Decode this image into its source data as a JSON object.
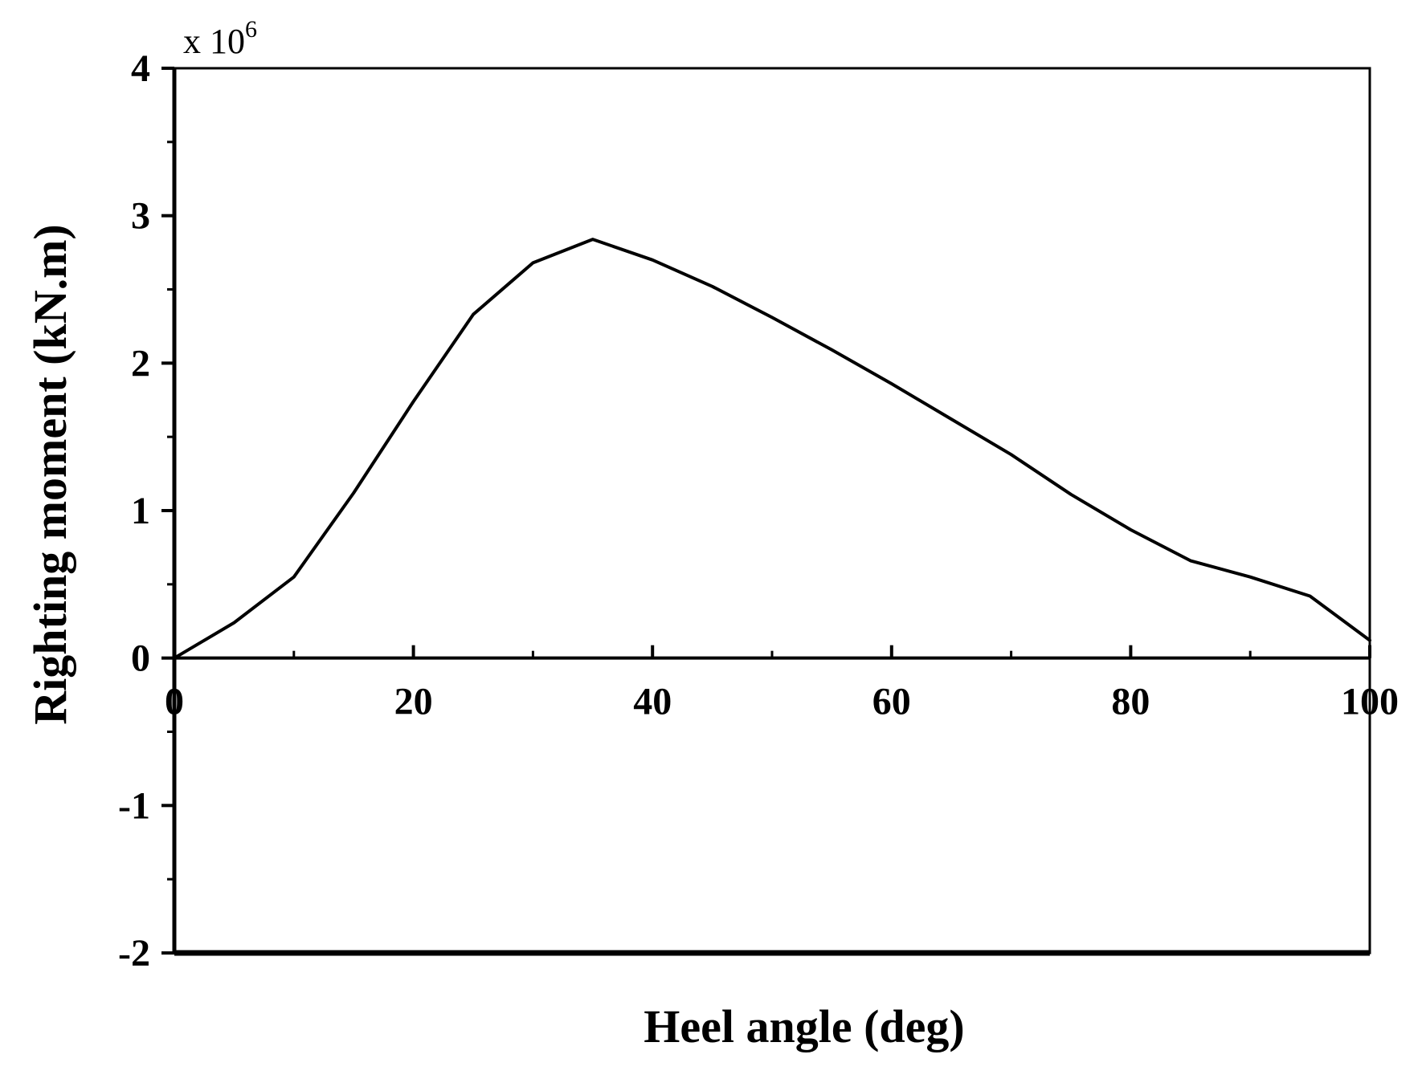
{
  "chart_data": {
    "type": "line",
    "title": "",
    "xlabel": "Heel angle (deg)",
    "ylabel": "Righting moment (kN.m)",
    "y_multiplier": {
      "base": "x 10",
      "exponent": "6"
    },
    "xlim": [
      0,
      100
    ],
    "ylim": [
      -2,
      4
    ],
    "x_ticks": [
      0,
      20,
      40,
      60,
      80,
      100
    ],
    "x_tick_labels": [
      "0",
      "20",
      "40",
      "60",
      "80",
      "100"
    ],
    "y_ticks": [
      -2,
      -1,
      0,
      1,
      2,
      3,
      4
    ],
    "y_tick_labels": [
      "-2",
      "-1",
      "0",
      "1",
      "2",
      "3",
      "4"
    ],
    "grid": false,
    "legend": "none",
    "zero_line": true,
    "line_color": "#000000",
    "series": [
      {
        "x": [
          0,
          5,
          10,
          15,
          20,
          25,
          30,
          35,
          40,
          45,
          50,
          55,
          60,
          65,
          70,
          75,
          80,
          85,
          90,
          95,
          100
        ],
        "values": [
          0,
          0.24,
          0.55,
          1.12,
          1.74,
          2.33,
          2.68,
          2.84,
          2.7,
          2.52,
          2.31,
          2.09,
          1.86,
          1.62,
          1.38,
          1.11,
          0.87,
          0.66,
          0.55,
          0.42,
          0.12
        ]
      }
    ]
  }
}
